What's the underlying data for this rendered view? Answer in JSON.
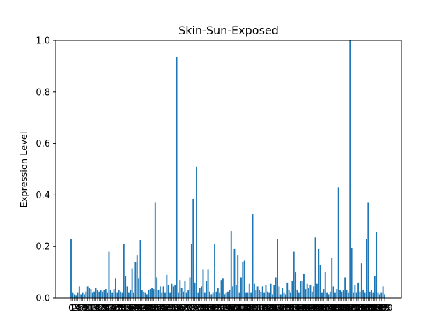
{
  "chart_data": {
    "type": "bar",
    "title": "Skin-Sun-Exposed",
    "xlabel": "",
    "ylabel": "Expression Level",
    "ylim": [
      0,
      1.0
    ],
    "yticks": [
      "0.0",
      "0.2",
      "0.4",
      "0.6",
      "0.8",
      "1.0"
    ],
    "grid": false,
    "legend": "none",
    "bar_color": "#1f77b4",
    "values": [
      0.23,
      0.02,
      0.015,
      0.01,
      0.02,
      0.045,
      0.015,
      0.02,
      0.015,
      0.025,
      0.045,
      0.04,
      0.035,
      0.02,
      0.025,
      0.04,
      0.03,
      0.025,
      0.03,
      0.025,
      0.03,
      0.035,
      0.02,
      0.18,
      0.03,
      0.02,
      0.035,
      0.075,
      0.02,
      0.03,
      0.025,
      0.02,
      0.21,
      0.085,
      0.045,
      0.02,
      0.03,
      0.115,
      0.02,
      0.14,
      0.165,
      0.075,
      0.225,
      0.03,
      0.025,
      0.02,
      0.015,
      0.03,
      0.035,
      0.04,
      0.035,
      0.37,
      0.08,
      0.03,
      0.045,
      0.02,
      0.045,
      0.02,
      0.09,
      0.05,
      0.02,
      0.055,
      0.045,
      0.05,
      0.935,
      0.02,
      0.07,
      0.04,
      0.025,
      0.065,
      0.02,
      0.03,
      0.08,
      0.21,
      0.385,
      0.06,
      0.51,
      0.02,
      0.04,
      0.045,
      0.11,
      0.02,
      0.065,
      0.11,
      0.025,
      0.015,
      0.02,
      0.21,
      0.025,
      0.04,
      0.02,
      0.07,
      0.075,
      0.015,
      0.02,
      0.025,
      0.03,
      0.26,
      0.045,
      0.19,
      0.05,
      0.165,
      0.02,
      0.08,
      0.14,
      0.145,
      0.02,
      0.02,
      0.055,
      0.02,
      0.325,
      0.055,
      0.03,
      0.045,
      0.03,
      0.025,
      0.045,
      0.02,
      0.05,
      0.025,
      0.02,
      0.055,
      0.015,
      0.05,
      0.08,
      0.23,
      0.045,
      0.015,
      0.04,
      0.02,
      0.015,
      0.06,
      0.03,
      0.02,
      0.065,
      0.18,
      0.1,
      0.03,
      0.02,
      0.065,
      0.065,
      0.095,
      0.035,
      0.055,
      0.04,
      0.05,
      0.025,
      0.045,
      0.235,
      0.055,
      0.19,
      0.13,
      0.02,
      0.035,
      0.1,
      0.02,
      0.015,
      0.025,
      0.155,
      0.045,
      0.02,
      0.035,
      0.43,
      0.03,
      0.025,
      0.03,
      0.08,
      0.03,
      0.02,
      1.0,
      0.195,
      0.02,
      0.05,
      0.02,
      0.06,
      0.025,
      0.135,
      0.03,
      0.02,
      0.23,
      0.37,
      0.025,
      0.03,
      0.02,
      0.085,
      0.255,
      0.02,
      0.015,
      0.02,
      0.045,
      0.015
    ],
    "x_tick_labels_note": "crowded overlapping index labels 0..N",
    "xtick_first": "0",
    "xtick_last": "9"
  }
}
